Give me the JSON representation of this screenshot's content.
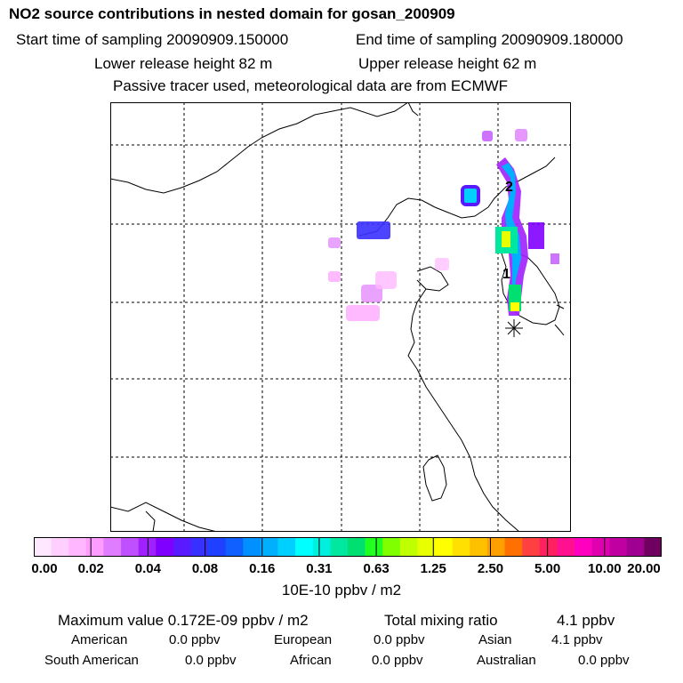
{
  "header": {
    "title": "NO2 source contributions in nested domain for gosan_200909",
    "start_time": "Start time of sampling 20090909.150000",
    "end_time": "End time of sampling 20090909.180000",
    "lower_height": "Lower release height   82 m",
    "upper_height": "Upper release height   62 m",
    "note": "Passive tracer used, meteorological data are from ECMWF"
  },
  "map": {
    "markers": [
      {
        "label": "2",
        "color": "#000000"
      },
      {
        "label": "1",
        "color": "#000000"
      }
    ],
    "receptor_icon": "asterisk-receptor-icon"
  },
  "colorbar": {
    "colors": [
      "#ffe8ff",
      "#ffd0ff",
      "#ffb8ff",
      "#ff9cff",
      "#e07cff",
      "#c050ff",
      "#a020ff",
      "#8000ff",
      "#5a1aff",
      "#3830ff",
      "#2040ff",
      "#1060ff",
      "#0090ff",
      "#00b0ff",
      "#00d0ff",
      "#00ffff",
      "#00f0e0",
      "#00e8a0",
      "#00e070",
      "#20ff20",
      "#80ff00",
      "#c0ff00",
      "#e8ff00",
      "#ffff00",
      "#ffe000",
      "#ffc000",
      "#ffa000",
      "#ff7000",
      "#ff4040",
      "#ff2060",
      "#ff1090",
      "#ff00c0",
      "#e000b0",
      "#c000a0",
      "#a00090",
      "#700060"
    ],
    "ticks": [
      "0.00",
      "0.02",
      "0.04",
      "0.08",
      "0.16",
      "0.31",
      "0.63",
      "1.25",
      "2.50",
      "5.00",
      "10.00",
      "20.00"
    ],
    "unit": "10E-10 ppbv / m2"
  },
  "footer": {
    "max_value": "Maximum value  0.172E-09 ppbv / m2",
    "total_mixing": "Total mixing ratio",
    "total_mixing_value": "4.1 ppbv",
    "american_label": "American",
    "american_value": "0.0 ppbv",
    "european_label": "European",
    "european_value": "0.0 ppbv",
    "asian_label": "Asian",
    "asian_value": "4.1 ppbv",
    "south_american_label": "South American",
    "south_american_value": "0.0 ppbv",
    "african_label": "African",
    "african_value": "0.0 ppbv",
    "australian_label": "Australian",
    "australian_value": "0.0 ppbv"
  }
}
